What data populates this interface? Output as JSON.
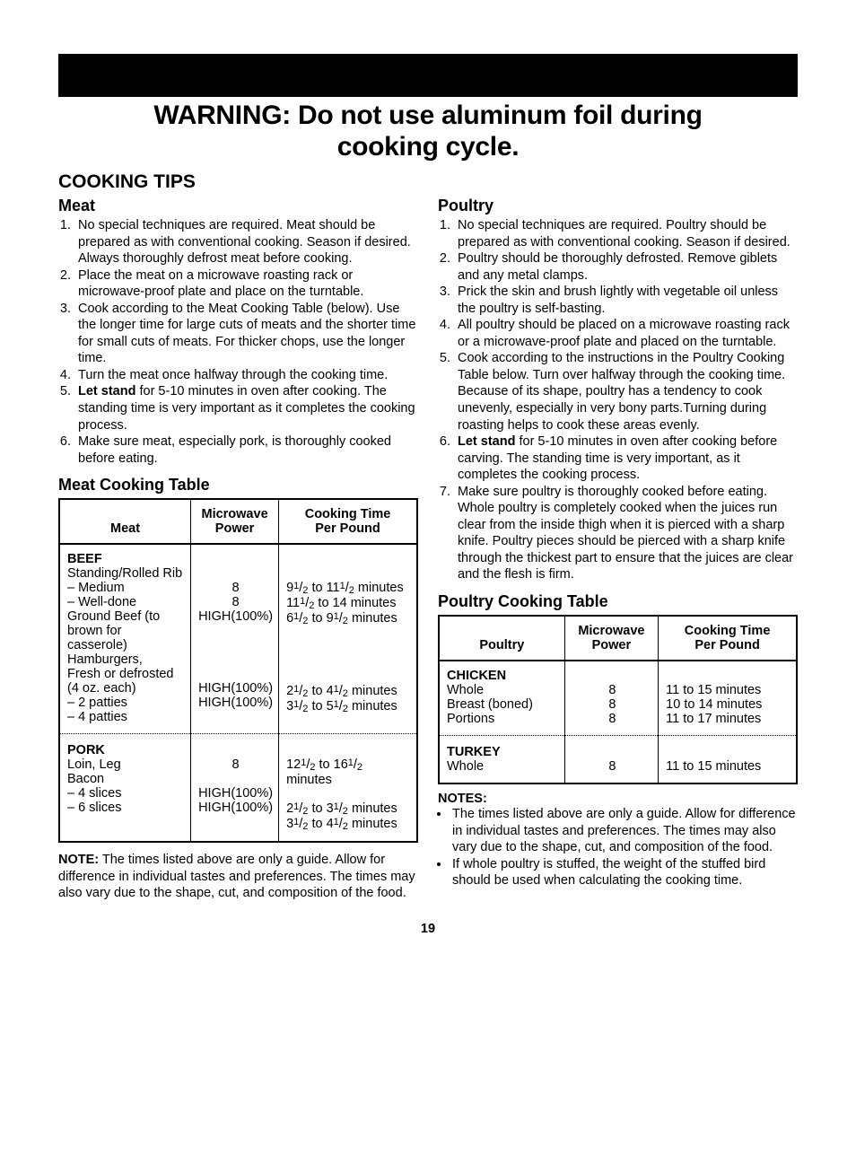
{
  "warning": {
    "line1": "WARNING: Do not use aluminum foil during",
    "line2": "cooking cycle."
  },
  "section_title": "COOKING TIPS",
  "meat": {
    "heading": "Meat",
    "tips": [
      "No special techniques are required. Meat should be prepared as with conventional cooking. Season if desired. Always thoroughly defrost meat before cooking.",
      "Place the meat on a microwave roasting rack or microwave-proof plate and place on the turntable.",
      "Cook according to the Meat Cooking Table (below). Use the longer time for large cuts of meats and the shorter time for small cuts of meats. For thicker chops, use the longer time.",
      "Turn the meat once halfway through the cooking time.",
      "<b>Let stand</b> for 5-10 minutes in oven after cooking. The standing time is very important as it completes the cooking process.",
      "Make sure meat, especially pork, is thoroughly cooked before eating."
    ],
    "table_title": "Meat Cooking Table",
    "headers": [
      "Meat",
      "Microwave Power",
      "Cooking Time Per Pound"
    ],
    "groups": [
      {
        "title": "BEEF",
        "rows": [
          {
            "name": "Standing/Rolled Rib",
            "power": "",
            "time": ""
          },
          {
            "name": "– Medium",
            "power": "8",
            "time": "9½ to 11½ minutes"
          },
          {
            "name": "– Well-done",
            "power": "8",
            "time": "11½ to 14 minutes"
          },
          {
            "name": "Ground Beef (to brown for casserole)",
            "power": "HIGH(100%)",
            "time": "6½ to 9½ minutes"
          },
          {
            "name": "Hamburgers, Fresh or defrosted (4 oz. each)",
            "power": "",
            "time": ""
          },
          {
            "name": "– 2 patties",
            "power": "HIGH(100%)",
            "time": "2½ to 4½ minutes"
          },
          {
            "name": "– 4 patties",
            "power": "HIGH(100%)",
            "time": "3½ to 5½ minutes"
          }
        ]
      },
      {
        "title": "PORK",
        "rows": [
          {
            "name": "Loin, Leg",
            "power": "8",
            "time": "12½ to 16½ minutes"
          },
          {
            "name": "Bacon",
            "power": "",
            "time": ""
          },
          {
            "name": "– 4 slices",
            "power": "HIGH(100%)",
            "time": "2½ to 3½ minutes"
          },
          {
            "name": "– 6 slices",
            "power": "HIGH(100%)",
            "time": "3½ to 4½ minutes"
          }
        ]
      }
    ],
    "note_label": "NOTE:",
    "note": "The times listed above are only a guide. Allow for difference in individual tastes and preferences. The times may also vary due to the shape, cut, and composition of the food."
  },
  "poultry": {
    "heading": "Poultry",
    "tips": [
      "No special techniques are required. Poultry should be prepared as with conventional cooking. Season if desired.",
      "Poultry should be thoroughly defrosted. Remove giblets and any metal clamps.",
      "Prick the skin and brush lightly with vegetable oil unless the poultry is self-basting.",
      "All poultry should be placed on a microwave roasting rack or a microwave-proof plate and placed on the turntable.",
      "Cook according to the instructions in the Poultry Cooking Table below. Turn over halfway through the cooking time. Because of its shape, poultry has a tendency to cook unevenly, especially in very bony parts.Turning during roasting helps to cook these areas evenly.",
      "<b>Let stand</b> for 5-10 minutes in oven after cooking before carving. The standing time is very important, as it completes the cooking process.",
      "Make sure poultry is thoroughly cooked before eating. Whole poultry is completely cooked when the juices run clear from the inside thigh when it is pierced with a sharp knife. Poultry pieces should be pierced with a sharp knife through the thickest part to ensure that the juices are clear and the flesh is firm."
    ],
    "table_title": "Poultry Cooking Table",
    "headers": [
      "Poultry",
      "Microwave Power",
      "Cooking Time Per Pound"
    ],
    "groups": [
      {
        "title": "CHICKEN",
        "rows": [
          {
            "name": "Whole",
            "power": "8",
            "time": "11 to 15 minutes"
          },
          {
            "name": "Breast (boned)",
            "power": "8",
            "time": "10 to 14 minutes"
          },
          {
            "name": "Portions",
            "power": "8",
            "time": "11 to 17 minutes"
          }
        ]
      },
      {
        "title": "TURKEY",
        "rows": [
          {
            "name": "Whole",
            "power": "8",
            "time": "11 to 15 minutes"
          }
        ]
      }
    ],
    "notes_label": "NOTES:",
    "notes": [
      "The times listed above are only a guide. Allow for difference in individual tastes and preferences. The times may also vary due to the shape, cut, and composition of the food.",
      "If whole poultry is stuffed, the weight of the stuffed bird should be used when calculating the cooking time."
    ]
  },
  "page_number": "19"
}
